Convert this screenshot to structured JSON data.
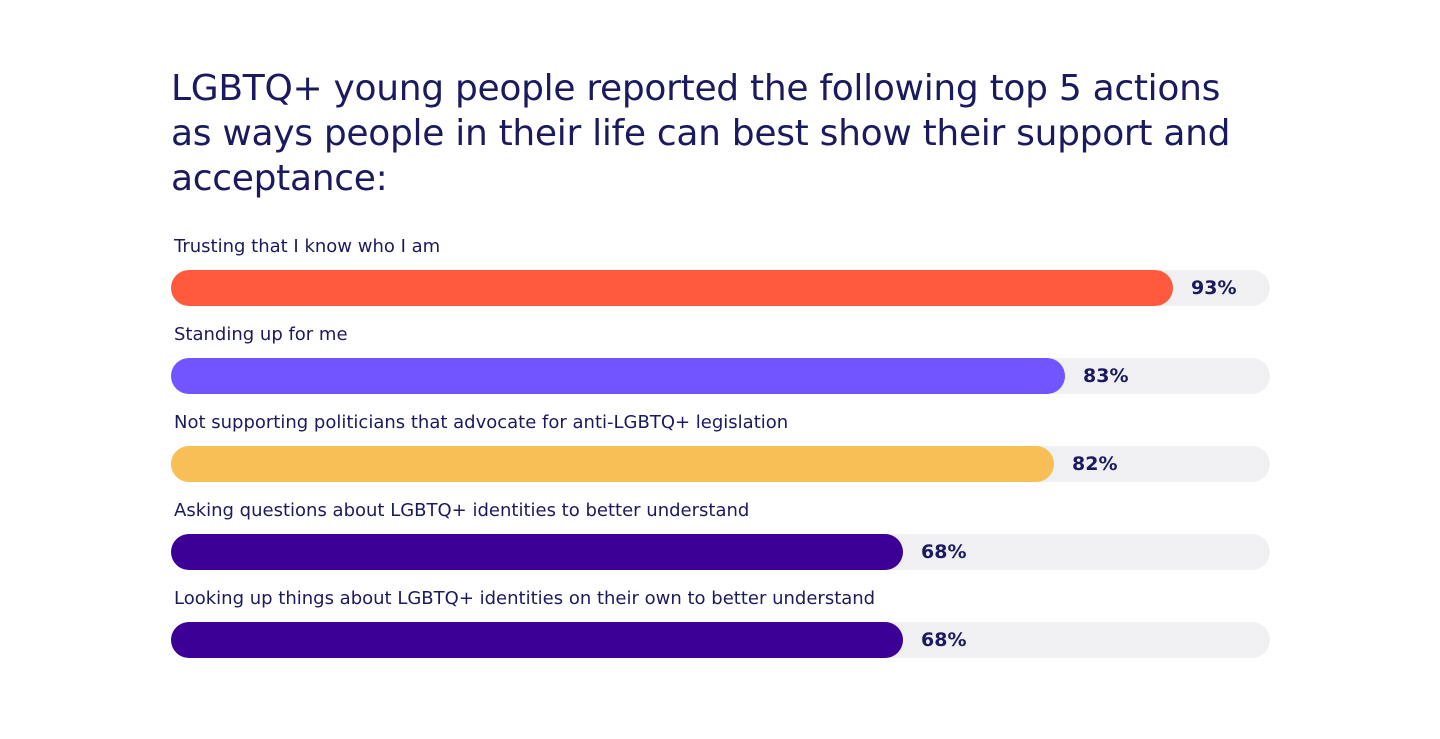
{
  "title": "LGBTQ+ young people reported the following top 5 actions as ways people in their life can best show their support and acceptance:",
  "chart_data": {
    "type": "bar",
    "orientation": "horizontal",
    "value_suffix": "%",
    "xlim": [
      0,
      100
    ],
    "grid": false,
    "categories": [
      "Trusting that I know who I am",
      "Standing up for me",
      "Not supporting politicians that advocate for anti-LGBTQ+ legislation",
      "Asking questions about LGBTQ+ identities to better understand",
      "Looking up things about LGBTQ+ identities on their own to better understand"
    ],
    "values": [
      93,
      83,
      82,
      68,
      68
    ],
    "value_labels": [
      "93%",
      "83%",
      "82%",
      "68%",
      "68%"
    ],
    "colors": [
      "#ff5a3d",
      "#7255ff",
      "#f7bf55",
      "#3d0096",
      "#3d0096"
    ],
    "track_color": "#f0f0f2"
  }
}
